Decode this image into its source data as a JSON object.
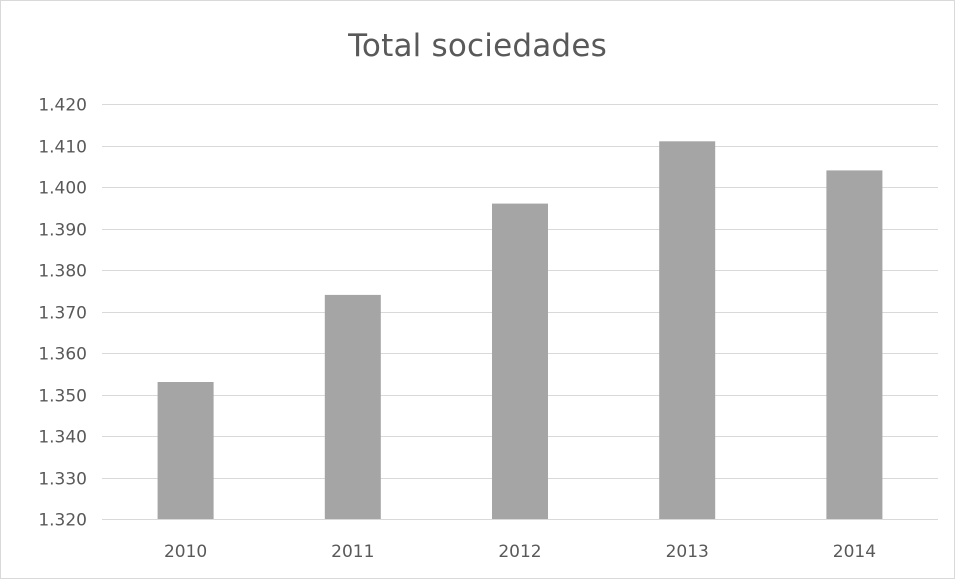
{
  "chart_data": {
    "type": "bar",
    "title": "Total sociedades",
    "xlabel": "",
    "ylabel": "",
    "categories": [
      "2010",
      "2011",
      "2012",
      "2013",
      "2014"
    ],
    "values": [
      1353,
      1374,
      1396,
      1411,
      1404
    ],
    "ylim": [
      1320,
      1420
    ],
    "yticks": [
      1320,
      1330,
      1340,
      1350,
      1360,
      1370,
      1380,
      1390,
      1400,
      1410,
      1420
    ],
    "ytick_labels": [
      "1.320",
      "1.330",
      "1.340",
      "1.350",
      "1.360",
      "1.370",
      "1.380",
      "1.390",
      "1.400",
      "1.410",
      "1.420"
    ],
    "grid": "horizontal",
    "legend": "none",
    "colors": {
      "bar": "#a5a5a5",
      "grid": "#d9d9d9",
      "text": "#595959"
    }
  }
}
